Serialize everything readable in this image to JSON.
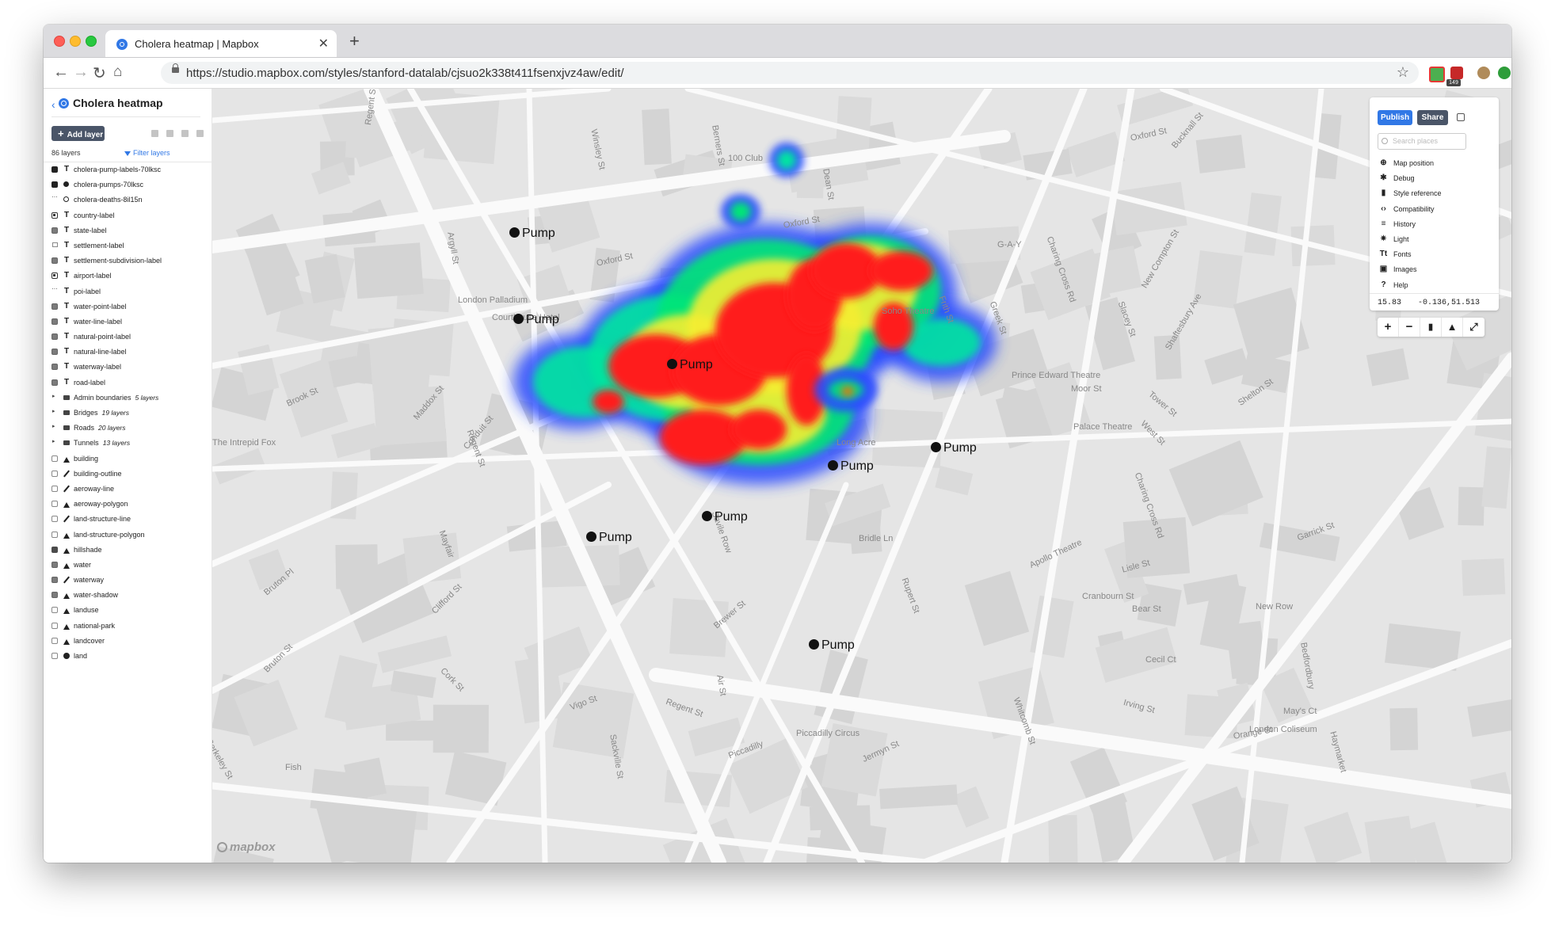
{
  "browser": {
    "tab_title": "Cholera heatmap | Mapbox",
    "url": "https://studio.mapbox.com/styles/stanford-datalab/cjsuo2k338t411fsenxjvz4aw/edit/",
    "extension_badge": "149"
  },
  "sidebar": {
    "style_name": "Cholera heatmap",
    "add_layer_label": "Add layer",
    "layer_count": "86 layers",
    "filter_label": "Filter layers",
    "layers": [
      {
        "label": "cholera-pump-labels-70lksc",
        "icon": "symbol"
      },
      {
        "label": "cholera-pumps-70lksc",
        "icon": "circle"
      },
      {
        "label": "cholera-deaths-8il15n",
        "icon": "heatmap"
      },
      {
        "label": "country-label",
        "icon": "symbol"
      },
      {
        "label": "state-label",
        "icon": "symbol"
      },
      {
        "label": "settlement-label",
        "icon": "symbol"
      },
      {
        "label": "settlement-subdivision-label",
        "icon": "symbol"
      },
      {
        "label": "airport-label",
        "icon": "symbol"
      },
      {
        "label": "poi-label",
        "icon": "symbol"
      },
      {
        "label": "water-point-label",
        "icon": "symbol"
      },
      {
        "label": "water-line-label",
        "icon": "symbol"
      },
      {
        "label": "natural-point-label",
        "icon": "symbol"
      },
      {
        "label": "natural-line-label",
        "icon": "symbol"
      },
      {
        "label": "waterway-label",
        "icon": "symbol"
      },
      {
        "label": "road-label",
        "icon": "symbol"
      },
      {
        "label": "Admin boundaries",
        "count": "5 layers",
        "icon": "folder"
      },
      {
        "label": "Bridges",
        "count": "19 layers",
        "icon": "folder"
      },
      {
        "label": "Roads",
        "count": "20 layers",
        "icon": "folder"
      },
      {
        "label": "Tunnels",
        "count": "13 layers",
        "icon": "folder"
      },
      {
        "label": "building",
        "icon": "fill"
      },
      {
        "label": "building-outline",
        "icon": "line"
      },
      {
        "label": "aeroway-line",
        "icon": "line"
      },
      {
        "label": "aeroway-polygon",
        "icon": "fill"
      },
      {
        "label": "land-structure-line",
        "icon": "line"
      },
      {
        "label": "land-structure-polygon",
        "icon": "fill"
      },
      {
        "label": "hillshade",
        "icon": "fill"
      },
      {
        "label": "water",
        "icon": "fill"
      },
      {
        "label": "waterway",
        "icon": "line"
      },
      {
        "label": "water-shadow",
        "icon": "fill"
      },
      {
        "label": "landuse",
        "icon": "fill"
      },
      {
        "label": "national-park",
        "icon": "fill"
      },
      {
        "label": "landcover",
        "icon": "fill"
      },
      {
        "label": "land",
        "icon": "background"
      }
    ]
  },
  "map": {
    "pump_label": "Pump",
    "street_labels": [
      "Regent St",
      "Oxford St",
      "Oxford St",
      "Oxford St",
      "100 Club",
      "Berners St",
      "Winsley St",
      "Dean St",
      "Argyll St",
      "London Palladium",
      "Courthouse Hotel",
      "G-A-Y",
      "Charing Cross Rd",
      "Frith St",
      "Greek St",
      "Soho Theatre",
      "Slacey St",
      "New Compton St",
      "Shaftesbury Ave",
      "Bucknall St",
      "Brook St",
      "Maddox St",
      "Conduit St",
      "Regent St",
      "Prince Edward Theatre",
      "Moor St",
      "Tower St",
      "Shelton St",
      "Palace Theatre",
      "West St",
      "Charing Cross Rd",
      "Long Acre",
      "The Intrepid Fox",
      "Mayfair",
      "Savile Row",
      "Bridle Ln",
      "Apollo Theatre",
      "Lisle St",
      "Garrick St",
      "Cranbourn St",
      "Bruton Pl",
      "Clifford St",
      "Brewer St",
      "Rupert St",
      "Bear St",
      "New Row",
      "Bruton St",
      "Cork St",
      "Air St",
      "Cecil Ct",
      "Bedfordbury",
      "Vigo St",
      "Regent St",
      "Whitcomb St",
      "Irving St",
      "May's Ct",
      "London Coliseum",
      "Piccadilly Circus",
      "Jermyn St",
      "Orange St",
      "Haymarket",
      "Sackville St",
      "Piccadilly",
      "Berkeley St",
      "Fish"
    ],
    "attribution": "mapbox"
  },
  "panel": {
    "publish_label": "Publish",
    "share_label": "Share",
    "search_placeholder": "Search places",
    "menu": [
      {
        "label": "Map position",
        "icon": "crosshair-icon"
      },
      {
        "label": "Debug",
        "icon": "bug-icon"
      },
      {
        "label": "Style reference",
        "icon": "book-icon"
      },
      {
        "label": "Compatibility",
        "icon": "code-icon"
      },
      {
        "label": "History",
        "icon": "history-icon"
      },
      {
        "label": "Light",
        "icon": "sun-icon"
      },
      {
        "label": "Fonts",
        "icon": "text-icon"
      },
      {
        "label": "Images",
        "icon": "image-icon"
      },
      {
        "label": "Help",
        "icon": "help-icon"
      }
    ],
    "zoom": "15.83",
    "coordinates": "-0.136,51.513"
  },
  "map_controls": {
    "zoom_in": "+",
    "zoom_out": "−"
  },
  "colors": {
    "accent": "#3178e6",
    "secondary_button": "#4a5568",
    "heat_low": "#0000ff",
    "heat_mid": "#00ff00",
    "heat_high": "#ff0000"
  }
}
